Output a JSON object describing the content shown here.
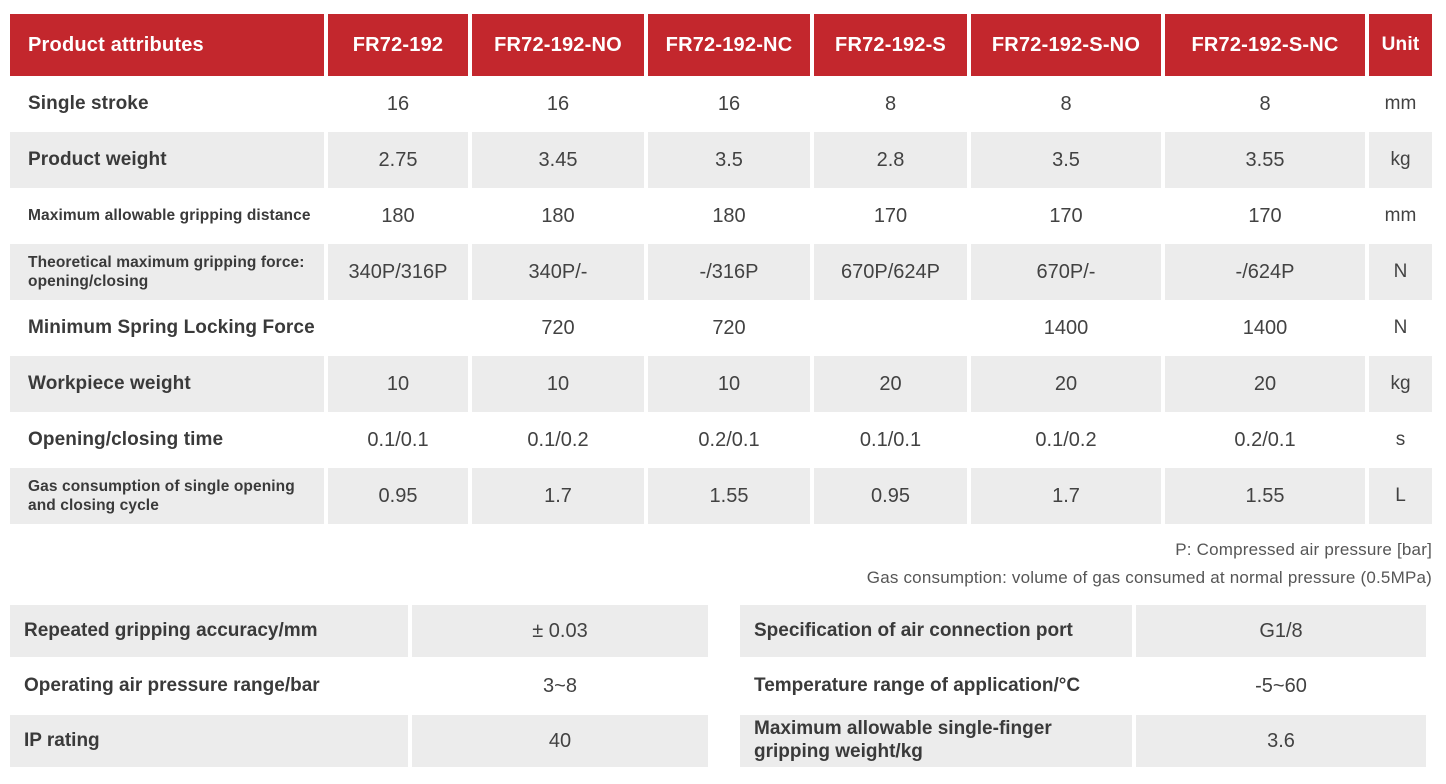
{
  "colors": {
    "header_bg": "#C3272D",
    "stripe_bg": "#ECECEC",
    "label_text": "#3A3A3A",
    "value_text": "#424242",
    "note_text": "#565656"
  },
  "spec_table": {
    "columns": [
      "Product attributes",
      "FR72-192",
      "FR72-192-NO",
      "FR72-192-NC",
      "FR72-192-S",
      "FR72-192-S-NO",
      "FR72-192-S-NC",
      "Unit"
    ],
    "rows": [
      {
        "attribute": "Single stroke",
        "values": [
          "16",
          "16",
          "16",
          "8",
          "8",
          "8"
        ],
        "unit": "mm"
      },
      {
        "attribute": "Product weight",
        "values": [
          "2.75",
          "3.45",
          "3.5",
          "2.8",
          "3.5",
          "3.55"
        ],
        "unit": "kg"
      },
      {
        "attribute": "Maximum allowable gripping distance",
        "values": [
          "180",
          "180",
          "180",
          "170",
          "170",
          "170"
        ],
        "unit": "mm"
      },
      {
        "attribute": "Theoretical maximum gripping force: opening/closing",
        "values": [
          "340P/316P",
          "340P/-",
          "-/316P",
          "670P/624P",
          "670P/-",
          "-/624P"
        ],
        "unit": "N"
      },
      {
        "attribute": "Minimum Spring Locking Force",
        "values": [
          "",
          "720",
          "720",
          "",
          "1400",
          "1400"
        ],
        "unit": "N"
      },
      {
        "attribute": "Workpiece weight",
        "values": [
          "10",
          "10",
          "10",
          "20",
          "20",
          "20"
        ],
        "unit": "kg"
      },
      {
        "attribute": "Opening/closing time",
        "values": [
          "0.1/0.1",
          "0.1/0.2",
          "0.2/0.1",
          "0.1/0.1",
          "0.1/0.2",
          "0.2/0.1"
        ],
        "unit": "s"
      },
      {
        "attribute": "Gas consumption of single opening and closing cycle",
        "values": [
          "0.95",
          "1.7",
          "1.55",
          "0.95",
          "1.7",
          "1.55"
        ],
        "unit": "L"
      }
    ]
  },
  "notes": [
    "P: Compressed air pressure [bar]",
    "Gas consumption: volume of gas consumed at normal pressure (0.5MPa)"
  ],
  "left_table": {
    "rows": [
      {
        "label": "Repeated gripping accuracy/mm",
        "value": "± 0.03"
      },
      {
        "label": "Operating air pressure range/bar",
        "value": "3~8"
      },
      {
        "label": "IP rating",
        "value": "40"
      }
    ]
  },
  "right_table": {
    "rows": [
      {
        "label": "Specification of air connection port",
        "value": "G1/8"
      },
      {
        "label": "Temperature range of application/°C",
        "value": "-5~60"
      },
      {
        "label": "Maximum allowable single-finger gripping weight/kg",
        "value": "3.6"
      }
    ]
  }
}
